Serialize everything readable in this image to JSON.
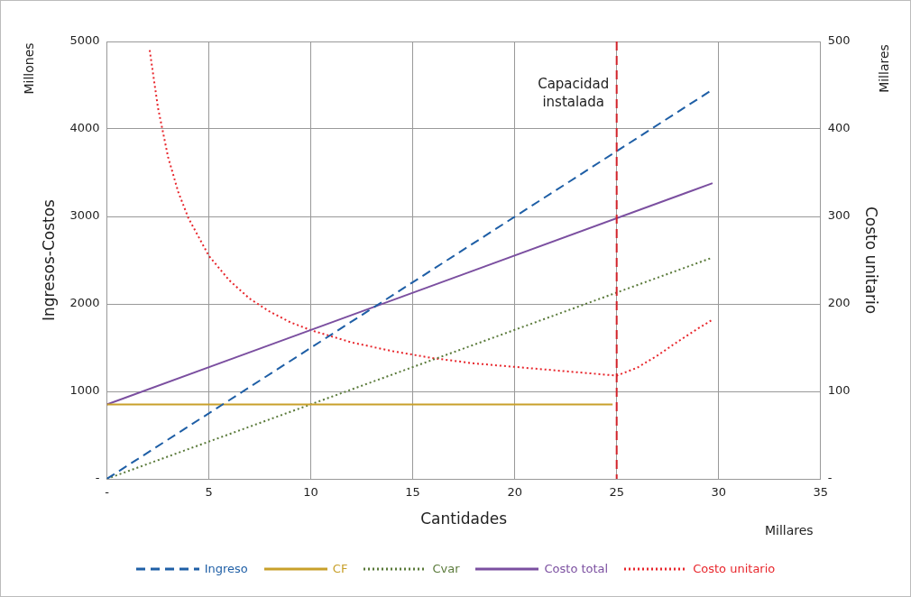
{
  "chart_data": {
    "type": "line",
    "xlabel": "Cantidades",
    "ylabel": "Ingresos-Costos",
    "y2label": "Costo unitario",
    "xlim": [
      0,
      35
    ],
    "xticks": [
      {
        "value": 0,
        "label": "-"
      },
      5,
      10,
      15,
      20,
      25,
      30,
      35
    ],
    "ylim": [
      0,
      5000
    ],
    "yticks": [
      {
        "value": 0,
        "label": "-"
      },
      1000,
      2000,
      3000,
      4000,
      5000
    ],
    "y2lim": [
      0,
      500
    ],
    "y2ticks": [
      {
        "value": 0,
        "label": "-"
      },
      100,
      200,
      300,
      400,
      500
    ],
    "grid": true,
    "legend": "bottom",
    "marker": "none",
    "annotations": [
      "Millones",
      "Millares",
      "Millares"
    ],
    "ref_lines": [
      {
        "axis": "x",
        "value": 25,
        "label": "Capacidad instalada",
        "color": "#d2232a",
        "line_style": "dashed"
      }
    ],
    "series": [
      {
        "name": "Ingreso",
        "color": "#1f5fa6",
        "line_style": "dashed",
        "x": [
          0,
          29.7
        ],
        "values": [
          0,
          4450
        ]
      },
      {
        "name": "CF",
        "color": "#c8a02a",
        "line_style": "solid",
        "x": [
          0,
          24.8
        ],
        "values": [
          850,
          850
        ]
      },
      {
        "name": "Cvar",
        "color": "#5a7a3a",
        "line_style": "dotted",
        "x": [
          0,
          29.7
        ],
        "values": [
          0,
          2530
        ]
      },
      {
        "name": "Costo total",
        "color": "#7b4fa0",
        "line_style": "solid",
        "x": [
          0,
          29.7
        ],
        "values": [
          850,
          3380
        ]
      },
      {
        "name": "Costo unitario",
        "color": "#e8262c",
        "line_style": "dotted",
        "axis": "y2",
        "x": [
          2.1,
          2.5,
          3,
          3.5,
          4,
          5,
          6,
          7,
          8,
          9,
          10,
          12,
          14,
          16,
          18,
          20,
          22,
          24,
          25,
          26,
          27,
          28,
          29,
          29.7
        ],
        "values": [
          490,
          425,
          368,
          328,
          298,
          255,
          227,
          206,
          191,
          179,
          170,
          156,
          146,
          138,
          132,
          128,
          124,
          120,
          118,
          127,
          141,
          157,
          172,
          182
        ]
      }
    ]
  }
}
